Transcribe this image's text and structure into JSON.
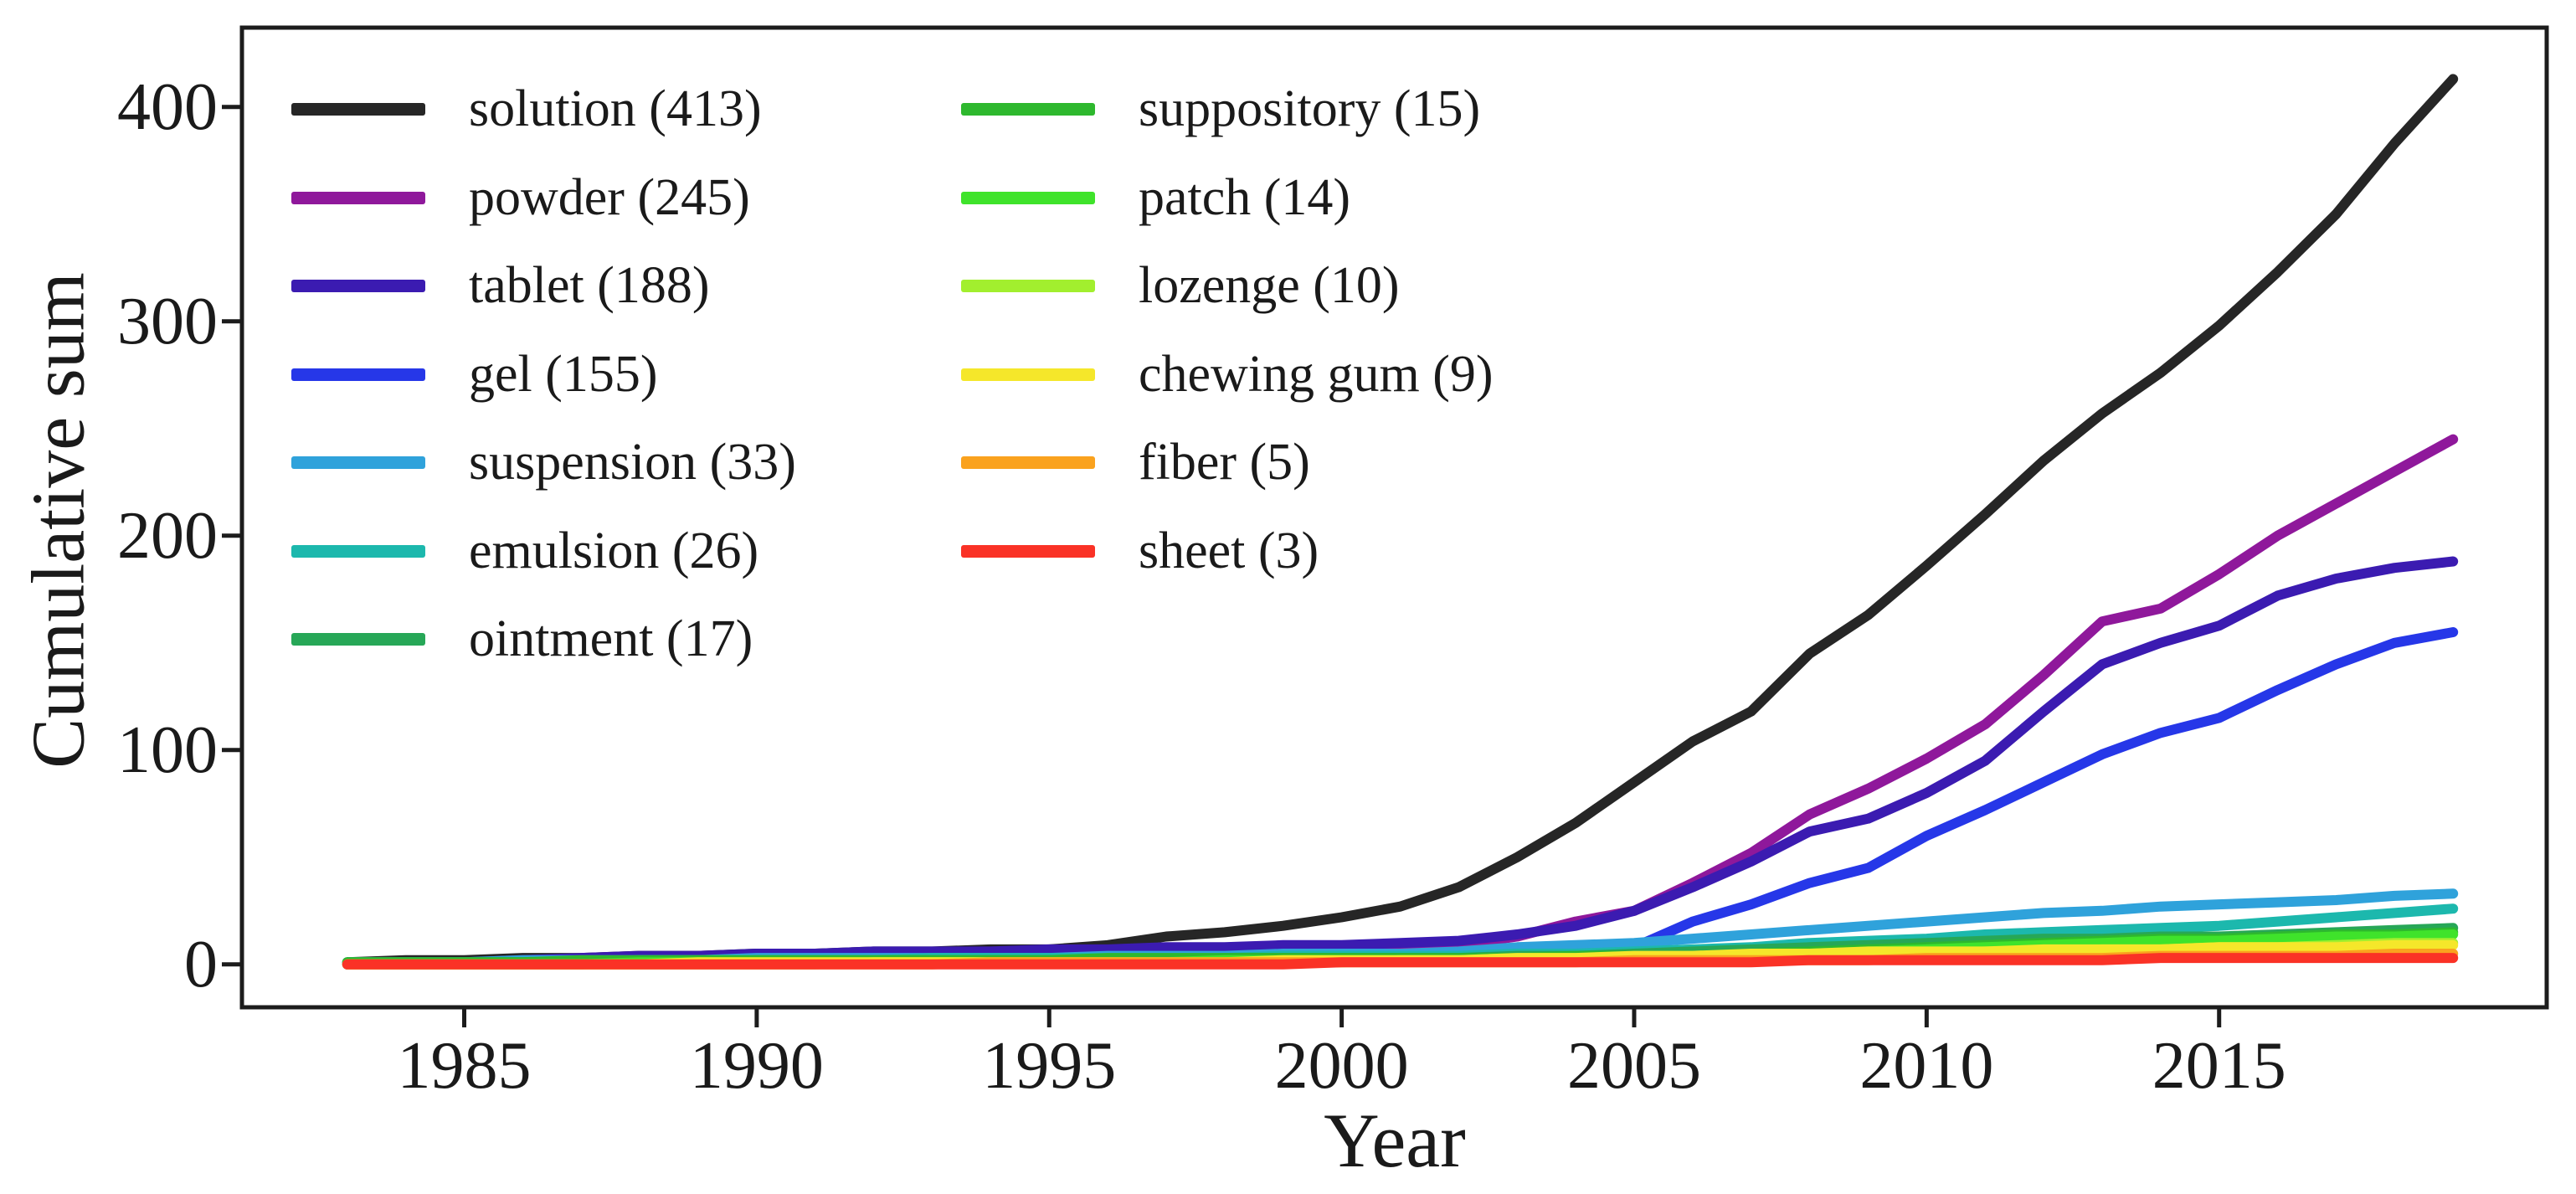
{
  "chart_data": {
    "type": "line",
    "title": "",
    "xlabel": "Year",
    "ylabel": "Cumulative sum",
    "grid": false,
    "legend_position": "upper left, two columns",
    "xlim": [
      1981.2,
      2020.6
    ],
    "ylim": [
      -20,
      437
    ],
    "x_ticks": [
      "1985",
      "1990",
      "1995",
      "2000",
      "2005",
      "2010",
      "2015"
    ],
    "x_tick_years": [
      1985,
      1990,
      1995,
      2000,
      2005,
      2010,
      2015
    ],
    "y_ticks": [
      "0",
      "100",
      "200",
      "300",
      "400"
    ],
    "y_tick_values": [
      0,
      100,
      200,
      300,
      400
    ],
    "x": [
      1983,
      1984,
      1985,
      1986,
      1987,
      1988,
      1989,
      1990,
      1991,
      1992,
      1993,
      1994,
      1995,
      1996,
      1997,
      1998,
      1999,
      2000,
      2001,
      2002,
      2003,
      2004,
      2005,
      2006,
      2007,
      2008,
      2009,
      2010,
      2011,
      2012,
      2013,
      2014,
      2015,
      2016,
      2017,
      2018,
      2019
    ],
    "series": [
      {
        "name": "solution",
        "label": "solution (413)",
        "count": 413,
        "color": "#262626",
        "values": [
          1,
          2,
          2,
          3,
          3,
          4,
          4,
          5,
          5,
          6,
          6,
          7,
          7,
          9,
          13,
          15,
          18,
          22,
          27,
          36,
          50,
          66,
          85,
          104,
          118,
          145,
          163,
          186,
          210,
          235,
          257,
          276,
          298,
          323,
          350,
          383,
          413
        ]
      },
      {
        "name": "powder",
        "label": "powder (245)",
        "count": 245,
        "color": "#8f189b",
        "values": [
          0,
          0,
          1,
          1,
          1,
          2,
          2,
          2,
          3,
          3,
          3,
          4,
          4,
          4,
          5,
          5,
          6,
          6,
          7,
          9,
          13,
          20,
          25,
          38,
          52,
          70,
          82,
          96,
          112,
          135,
          160,
          166,
          182,
          200,
          215,
          230,
          245
        ]
      },
      {
        "name": "tablet",
        "label": "tablet (188)",
        "count": 188,
        "color": "#3b1bb1",
        "values": [
          0,
          1,
          1,
          2,
          3,
          4,
          4,
          5,
          5,
          6,
          6,
          6,
          7,
          7,
          8,
          8,
          9,
          9,
          10,
          11,
          14,
          18,
          25,
          36,
          48,
          62,
          68,
          80,
          95,
          118,
          140,
          150,
          158,
          172,
          180,
          185,
          188
        ]
      },
      {
        "name": "gel",
        "label": "gel (155)",
        "count": 155,
        "color": "#2637e8",
        "values": [
          0,
          0,
          0,
          0,
          1,
          1,
          1,
          1,
          1,
          1,
          1,
          1,
          1,
          1,
          2,
          2,
          3,
          3,
          4,
          4,
          5,
          6,
          8,
          20,
          28,
          38,
          45,
          60,
          72,
          85,
          98,
          108,
          115,
          128,
          140,
          150,
          155
        ]
      },
      {
        "name": "suspension",
        "label": "suspension (33)",
        "count": 33,
        "color": "#2fa2db",
        "values": [
          1,
          1,
          1,
          2,
          2,
          2,
          2,
          3,
          3,
          3,
          3,
          3,
          3,
          4,
          4,
          4,
          5,
          5,
          5,
          6,
          8,
          9,
          10,
          12,
          14,
          16,
          18,
          20,
          22,
          24,
          25,
          27,
          28,
          29,
          30,
          32,
          33
        ]
      },
      {
        "name": "emulsion",
        "label": "emulsion (26)",
        "count": 26,
        "color": "#1cb8ad",
        "values": [
          1,
          1,
          1,
          1,
          1,
          2,
          2,
          2,
          2,
          2,
          3,
          3,
          3,
          3,
          3,
          3,
          4,
          4,
          4,
          4,
          5,
          5,
          6,
          7,
          8,
          10,
          11,
          12,
          14,
          15,
          16,
          17,
          18,
          20,
          22,
          24,
          26
        ]
      },
      {
        "name": "ointment",
        "label": "ointment (17)",
        "count": 17,
        "color": "#27a757",
        "values": [
          1,
          1,
          1,
          1,
          1,
          1,
          1,
          2,
          2,
          2,
          2,
          2,
          2,
          2,
          2,
          3,
          3,
          3,
          3,
          3,
          4,
          4,
          5,
          6,
          7,
          8,
          9,
          10,
          11,
          12,
          12,
          13,
          13,
          14,
          15,
          16,
          17
        ]
      },
      {
        "name": "suppository",
        "label": "suppository (15)",
        "count": 15,
        "color": "#2eb82e",
        "values": [
          1,
          1,
          1,
          1,
          2,
          2,
          2,
          2,
          2,
          2,
          2,
          2,
          2,
          3,
          3,
          3,
          3,
          3,
          3,
          3,
          3,
          4,
          4,
          4,
          5,
          6,
          7,
          8,
          9,
          10,
          11,
          12,
          12,
          13,
          14,
          14,
          15
        ]
      },
      {
        "name": "patch",
        "label": "patch (14)",
        "count": 14,
        "color": "#3fe32b",
        "values": [
          0,
          0,
          0,
          0,
          0,
          1,
          1,
          1,
          1,
          1,
          1,
          1,
          1,
          1,
          1,
          2,
          2,
          2,
          2,
          2,
          3,
          3,
          3,
          4,
          4,
          5,
          6,
          7,
          8,
          9,
          10,
          11,
          11,
          12,
          13,
          13,
          14
        ]
      },
      {
        "name": "lozenge",
        "label": "lozenge (10)",
        "count": 10,
        "color": "#a2ef2e",
        "values": [
          0,
          0,
          0,
          0,
          0,
          0,
          0,
          0,
          0,
          1,
          1,
          1,
          1,
          1,
          1,
          1,
          1,
          1,
          2,
          2,
          2,
          2,
          3,
          3,
          4,
          4,
          5,
          5,
          6,
          6,
          7,
          7,
          8,
          8,
          9,
          10,
          10
        ]
      },
      {
        "name": "chewing-gum",
        "label": "chewing gum (9)",
        "count": 9,
        "color": "#f5e72a",
        "values": [
          0,
          0,
          0,
          0,
          0,
          0,
          1,
          1,
          1,
          1,
          1,
          1,
          1,
          1,
          1,
          1,
          2,
          2,
          2,
          2,
          3,
          3,
          4,
          4,
          5,
          5,
          6,
          6,
          6,
          7,
          7,
          7,
          8,
          8,
          8,
          9,
          9
        ]
      },
      {
        "name": "fiber",
        "label": "fiber (5)",
        "count": 5,
        "color": "#faa21e",
        "values": [
          0,
          0,
          0,
          0,
          0,
          0,
          0,
          0,
          0,
          0,
          0,
          1,
          1,
          1,
          1,
          1,
          1,
          1,
          1,
          1,
          1,
          1,
          2,
          2,
          2,
          2,
          2,
          3,
          3,
          3,
          3,
          4,
          4,
          4,
          4,
          5,
          5
        ]
      },
      {
        "name": "sheet",
        "label": "sheet (3)",
        "count": 3,
        "color": "#fa3226",
        "values": [
          0,
          0,
          0,
          0,
          0,
          0,
          0,
          0,
          0,
          0,
          0,
          0,
          0,
          0,
          0,
          0,
          0,
          1,
          1,
          1,
          1,
          1,
          1,
          1,
          1,
          2,
          2,
          2,
          2,
          2,
          2,
          3,
          3,
          3,
          3,
          3,
          3
        ]
      }
    ]
  }
}
